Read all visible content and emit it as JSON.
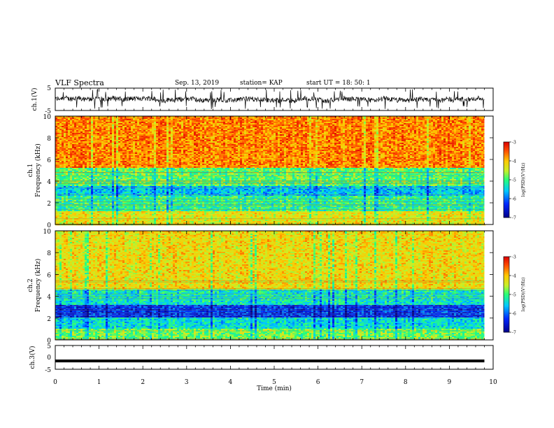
{
  "header": {
    "title": "VLF Spectra",
    "date": "Sep. 13, 2019",
    "station": "station= KAP",
    "start_ut": "start  UT  =   18: 50: 1"
  },
  "chart_data": [
    {
      "type": "line",
      "panel": "ch1 waveform",
      "ylabel": "ch.1(V)",
      "ylim": [
        -5,
        5
      ],
      "ytick_labels": [
        "5",
        "-5"
      ],
      "series": [
        {
          "values_note_range": [
            -4.5,
            4.5
          ]
        }
      ]
    },
    {
      "type": "heatmap",
      "panel": "ch1 spectrogram",
      "ylabel": "ch.1\nFrequency (kHz)",
      "ylim": [
        0,
        10
      ],
      "ytick_labels": [
        "0",
        "2",
        "4",
        "6",
        "8",
        "10"
      ],
      "xlim": [
        0,
        9.8
      ],
      "colorbar": {
        "label": "log(PSD)(V²/Hz)",
        "range": [
          -7,
          -3
        ],
        "tick_labels": [
          "-3",
          "-4",
          "-5",
          "-6",
          "-7"
        ]
      },
      "bands": [
        {
          "from_khz": 0,
          "to_khz": 1.2,
          "level": -4.3
        },
        {
          "from_khz": 1.2,
          "to_khz": 2.6,
          "level": -5.1
        },
        {
          "from_khz": 2.6,
          "to_khz": 3.6,
          "level": -5.6
        },
        {
          "from_khz": 3.6,
          "to_khz": 5.2,
          "level": -4.9
        },
        {
          "from_khz": 5.2,
          "to_khz": 10,
          "level": -3.7
        }
      ]
    },
    {
      "type": "heatmap",
      "panel": "ch2 spectrogram",
      "ylabel": "ch.2\nFrequency (kHz)",
      "ylim": [
        0,
        10
      ],
      "ytick_labels": [
        "0",
        "2",
        "4",
        "6",
        "8",
        "10"
      ],
      "xlim": [
        0,
        9.8
      ],
      "colorbar": {
        "label": "log(PSD)(V²/Hz)",
        "range": [
          -7,
          -3
        ],
        "tick_labels": [
          "-3",
          "-4",
          "-5",
          "-6",
          "-7"
        ]
      },
      "bands": [
        {
          "from_khz": 0,
          "to_khz": 1.0,
          "level": -4.8
        },
        {
          "from_khz": 1.0,
          "to_khz": 2.0,
          "level": -5.4
        },
        {
          "from_khz": 2.0,
          "to_khz": 3.2,
          "level": -6.3
        },
        {
          "from_khz": 3.2,
          "to_khz": 4.6,
          "level": -5.3
        },
        {
          "from_khz": 4.6,
          "to_khz": 10,
          "level": -4.2
        }
      ]
    },
    {
      "type": "line",
      "panel": "ch3 waveform",
      "ylabel": "ch.3(V)",
      "ylim": [
        -5,
        5
      ],
      "ytick_labels": [
        "5",
        "0",
        "-5"
      ],
      "series": [
        {
          "constant_value": -1.5
        }
      ]
    }
  ],
  "time_axis": {
    "xlabel": "Time (min)",
    "xlim": [
      0,
      10
    ],
    "tick_labels": [
      "0",
      "1",
      "2",
      "3",
      "4",
      "5",
      "6",
      "7",
      "8",
      "9",
      "10"
    ]
  }
}
